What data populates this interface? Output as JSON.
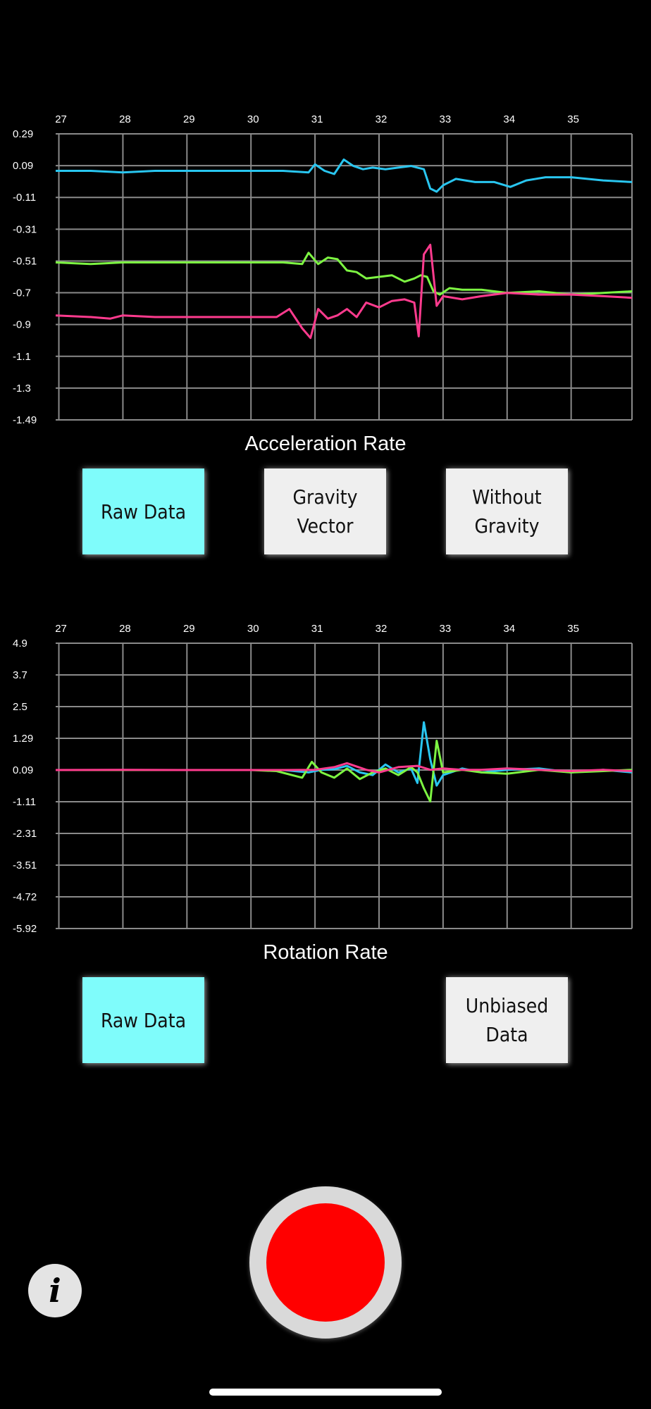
{
  "chart_data": [
    {
      "type": "line",
      "title": "Acceleration Rate",
      "x_ticks": [
        "27",
        "28",
        "29",
        "30",
        "31",
        "32",
        "33",
        "34",
        "35"
      ],
      "y_ticks": [
        "0.29",
        "0.09",
        "-0.11",
        "-0.31",
        "-0.51",
        "-0.7",
        "-0.9",
        "-1.1",
        "-1.3",
        "-1.49"
      ],
      "xlim": [
        26.95,
        35.95
      ],
      "ylim": [
        -1.49,
        0.29
      ],
      "grid": true,
      "series": [
        {
          "color": "#29c6f0",
          "x": [
            26.95,
            27.5,
            28.0,
            28.5,
            29.0,
            29.5,
            30.0,
            30.5,
            30.9,
            31.0,
            31.15,
            31.3,
            31.45,
            31.6,
            31.75,
            31.9,
            32.1,
            32.3,
            32.5,
            32.6,
            32.7,
            32.8,
            32.9,
            33.0,
            33.2,
            33.5,
            33.8,
            34.05,
            34.3,
            34.6,
            35.0,
            35.5,
            35.95
          ],
          "y": [
            0.06,
            0.06,
            0.05,
            0.06,
            0.06,
            0.06,
            0.06,
            0.06,
            0.05,
            0.1,
            0.06,
            0.04,
            0.13,
            0.09,
            0.07,
            0.08,
            0.07,
            0.08,
            0.09,
            0.08,
            0.07,
            -0.05,
            -0.07,
            -0.03,
            0.01,
            -0.01,
            -0.01,
            -0.04,
            0.0,
            0.02,
            0.02,
            0.0,
            -0.01
          ]
        },
        {
          "color": "#7df542",
          "x": [
            26.95,
            27.5,
            28.0,
            28.5,
            29.0,
            29.5,
            30.0,
            30.5,
            30.8,
            30.9,
            31.05,
            31.2,
            31.35,
            31.5,
            31.65,
            31.8,
            32.0,
            32.2,
            32.4,
            32.55,
            32.65,
            32.75,
            32.85,
            32.95,
            33.1,
            33.3,
            33.6,
            34.0,
            34.5,
            35.0,
            35.5,
            35.95
          ],
          "y": [
            -0.51,
            -0.52,
            -0.51,
            -0.51,
            -0.51,
            -0.51,
            -0.51,
            -0.51,
            -0.52,
            -0.45,
            -0.52,
            -0.48,
            -0.49,
            -0.56,
            -0.57,
            -0.61,
            -0.6,
            -0.59,
            -0.63,
            -0.61,
            -0.59,
            -0.6,
            -0.69,
            -0.71,
            -0.67,
            -0.68,
            -0.68,
            -0.7,
            -0.69,
            -0.71,
            -0.7,
            -0.69
          ]
        },
        {
          "color": "#ff3b8e",
          "x": [
            26.95,
            27.5,
            27.8,
            28.0,
            28.5,
            29.0,
            29.5,
            30.0,
            30.4,
            30.6,
            30.8,
            30.93,
            31.05,
            31.2,
            31.35,
            31.5,
            31.65,
            31.8,
            32.0,
            32.2,
            32.4,
            32.55,
            32.62,
            32.7,
            32.8,
            32.9,
            33.0,
            33.3,
            33.6,
            34.0,
            34.5,
            35.0,
            35.5,
            35.95
          ],
          "y": [
            -0.84,
            -0.85,
            -0.86,
            -0.84,
            -0.85,
            -0.85,
            -0.85,
            -0.85,
            -0.85,
            -0.8,
            -0.92,
            -0.98,
            -0.8,
            -0.86,
            -0.84,
            -0.8,
            -0.85,
            -0.76,
            -0.79,
            -0.75,
            -0.74,
            -0.76,
            -0.97,
            -0.46,
            -0.4,
            -0.78,
            -0.72,
            -0.74,
            -0.72,
            -0.7,
            -0.71,
            -0.71,
            -0.72,
            -0.73
          ]
        }
      ]
    },
    {
      "type": "line",
      "title": "Rotation Rate",
      "x_ticks": [
        "27",
        "28",
        "29",
        "30",
        "31",
        "32",
        "33",
        "34",
        "35"
      ],
      "y_ticks": [
        "4.9",
        "3.7",
        "2.5",
        "1.29",
        "0.09",
        "-1.11",
        "-2.31",
        "-3.51",
        "-4.72",
        "-5.92"
      ],
      "xlim": [
        26.95,
        35.95
      ],
      "ylim": [
        -5.92,
        4.9
      ],
      "grid": true,
      "series": [
        {
          "color": "#29c6f0",
          "x": [
            26.95,
            28.0,
            29.0,
            30.0,
            30.5,
            30.9,
            31.1,
            31.3,
            31.5,
            31.7,
            31.9,
            32.1,
            32.3,
            32.5,
            32.6,
            32.7,
            32.8,
            32.9,
            33.0,
            33.3,
            33.6,
            34.0,
            34.5,
            35.0,
            35.5,
            35.95
          ],
          "y": [
            0.09,
            0.09,
            0.09,
            0.09,
            0.09,
            0.0,
            0.1,
            0.12,
            0.25,
            0.0,
            -0.1,
            0.3,
            0.0,
            0.15,
            -0.4,
            1.9,
            0.5,
            -0.5,
            -0.1,
            0.15,
            0.0,
            0.1,
            0.15,
            0.0,
            0.1,
            0.0
          ]
        },
        {
          "color": "#7df542",
          "x": [
            26.95,
            28.0,
            29.0,
            30.0,
            30.4,
            30.8,
            30.95,
            31.1,
            31.3,
            31.5,
            31.7,
            31.9,
            32.1,
            32.3,
            32.5,
            32.6,
            32.7,
            32.8,
            32.9,
            33.0,
            33.3,
            33.6,
            34.0,
            34.5,
            35.0,
            35.5,
            35.95
          ],
          "y": [
            0.09,
            0.09,
            0.09,
            0.09,
            0.05,
            -0.2,
            0.4,
            0.0,
            -0.2,
            0.15,
            -0.25,
            0.0,
            0.15,
            -0.1,
            0.2,
            0.0,
            -0.6,
            -1.1,
            1.2,
            0.0,
            0.1,
            0.0,
            -0.05,
            0.1,
            0.0,
            0.05,
            0.1
          ]
        },
        {
          "color": "#ff3b8e",
          "x": [
            26.95,
            28.0,
            29.0,
            30.0,
            30.5,
            31.0,
            31.3,
            31.5,
            31.8,
            32.0,
            32.3,
            32.6,
            32.8,
            33.0,
            33.3,
            33.6,
            34.0,
            34.5,
            35.0,
            35.5,
            35.95
          ],
          "y": [
            0.09,
            0.1,
            0.09,
            0.09,
            0.09,
            0.1,
            0.2,
            0.35,
            0.1,
            0.0,
            0.2,
            0.25,
            0.1,
            0.15,
            0.1,
            0.1,
            0.15,
            0.1,
            0.05,
            0.1,
            0.05
          ]
        }
      ]
    }
  ],
  "acceleration": {
    "buttons": [
      {
        "label": "Raw Data",
        "selected": true
      },
      {
        "label": "Gravity\nVector",
        "selected": false
      },
      {
        "label": "Without\nGravity",
        "selected": false
      }
    ]
  },
  "rotation": {
    "buttons": [
      {
        "label": "Raw Data",
        "selected": true
      },
      {
        "label": "Unbiased\nData",
        "selected": false
      }
    ]
  },
  "controls": {
    "record_color": "#ff0000",
    "record_icon": "record-icon",
    "info_icon": "info-icon",
    "info_glyph": "i"
  }
}
